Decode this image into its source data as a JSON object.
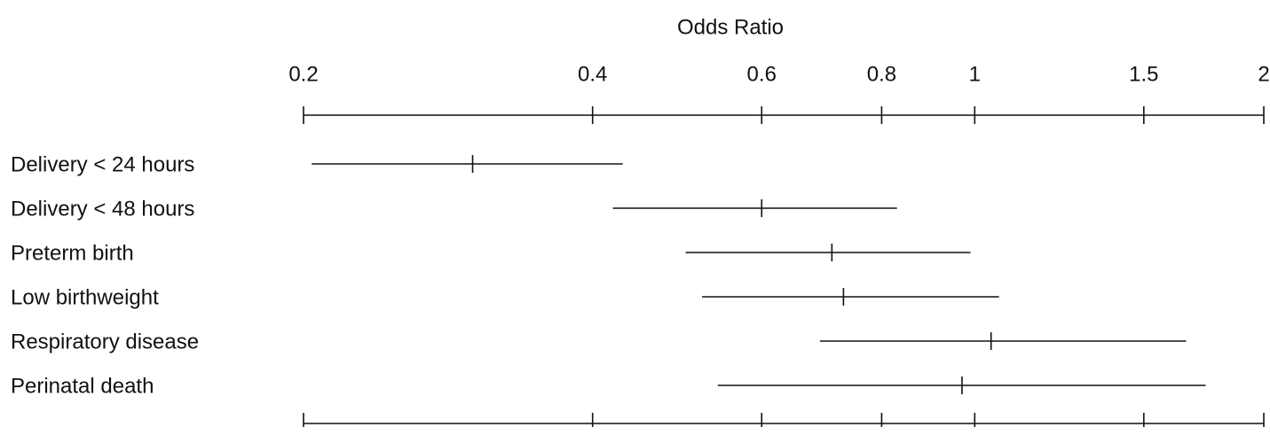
{
  "chart_data": {
    "type": "forest",
    "title": "Odds Ratio",
    "categories": [
      "Delivery < 24 hours",
      "Delivery < 48 hours",
      "Preterm birth",
      "Low birthweight",
      "Respiratory disease",
      "Perinatal death"
    ],
    "values": [
      0.3,
      0.6,
      0.71,
      0.73,
      1.04,
      0.97
    ],
    "lower": [
      0.204,
      0.42,
      0.5,
      0.52,
      0.69,
      0.54
    ],
    "upper": [
      0.43,
      0.83,
      0.99,
      1.06,
      1.66,
      1.74
    ],
    "xlim": [
      0.2,
      2
    ],
    "xticks": [
      0.2,
      0.4,
      0.6,
      0.8,
      1,
      1.5,
      2
    ],
    "log_scale": true,
    "color": "#111111"
  }
}
